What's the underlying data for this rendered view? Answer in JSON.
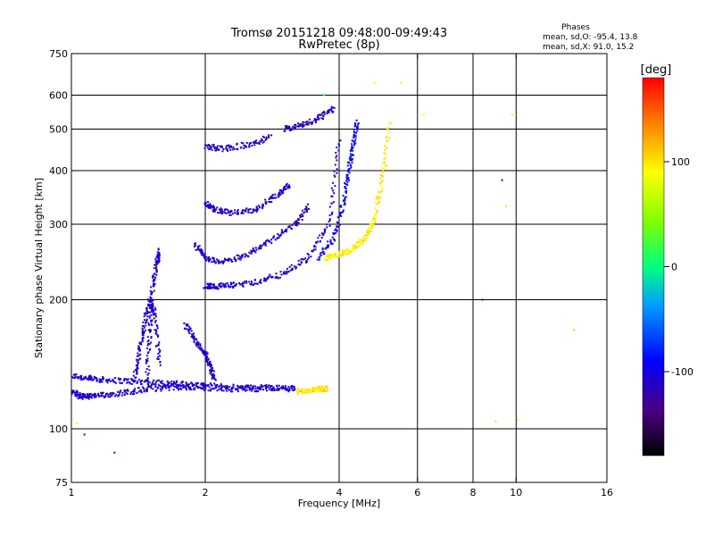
{
  "chart_data": {
    "type": "scatter",
    "title": "Tromsø 20151218 09:48:00-09:49:43",
    "subtitle": "RwPretec (8p)",
    "xlabel": "Frequency [MHz]",
    "ylabel": "Stationary phase Virtual Height [km]",
    "x_scale": "log",
    "y_scale": "log",
    "xlim": [
      1,
      16
    ],
    "ylim": [
      75,
      750
    ],
    "x_ticks": [
      1,
      2,
      4,
      6,
      8,
      10,
      16
    ],
    "y_ticks": [
      75,
      100,
      200,
      300,
      400,
      500,
      600,
      750
    ],
    "x_grid": [
      2,
      4,
      6,
      8,
      10
    ],
    "y_grid": [
      100,
      200,
      300,
      400,
      500,
      600
    ],
    "grid": true,
    "colorbar": {
      "label": "[deg]",
      "range": [
        -180,
        180
      ],
      "ticks": [
        100,
        0,
        -100
      ]
    },
    "stats": {
      "title": "Phases",
      "o_line": "mean, sd,O: -95.4, 13.8",
      "x_line": "mean, sd,X: 91.0, 15.2"
    },
    "traces": [
      {
        "type": "band",
        "freq": [
          1.0,
          1.1,
          1.2,
          1.4,
          1.6,
          1.8,
          2.0,
          2.4,
          2.8,
          3.2
        ],
        "height": [
          133,
          131,
          130,
          129,
          128,
          127,
          126,
          125,
          125,
          124
        ],
        "phase": -105
      },
      {
        "type": "band",
        "freq": [
          1.0,
          1.05,
          1.1,
          1.2,
          1.35,
          1.5,
          1.7,
          1.9,
          2.2,
          2.6,
          3.2
        ],
        "height": [
          122,
          119,
          119,
          120,
          122,
          124,
          125,
          125,
          124,
          124,
          124
        ],
        "phase": -110
      },
      {
        "type": "band",
        "freq": [
          1.38,
          1.42,
          1.46,
          1.5,
          1.54,
          1.58
        ],
        "height": [
          128,
          150,
          175,
          200,
          185,
          140
        ],
        "phase": -110
      },
      {
        "type": "band",
        "freq": [
          1.48,
          1.5,
          1.52,
          1.55,
          1.58
        ],
        "height": [
          130,
          170,
          210,
          240,
          260
        ],
        "phase": -108
      },
      {
        "type": "band",
        "freq": [
          1.8,
          1.9,
          2.0,
          2.05,
          2.1
        ],
        "height": [
          175,
          160,
          150,
          140,
          130
        ],
        "phase": -108
      },
      {
        "type": "band",
        "freq": [
          2.0,
          2.1,
          2.3,
          2.6,
          3.0,
          3.4,
          3.8,
          4.0
        ],
        "height": [
          215,
          215,
          216,
          220,
          230,
          250,
          300,
          480
        ],
        "phase": -110
      },
      {
        "type": "band",
        "freq": [
          3.6,
          3.9,
          4.1,
          4.2,
          4.3,
          4.4
        ],
        "height": [
          250,
          280,
          340,
          400,
          460,
          520
        ],
        "phase": -95
      },
      {
        "type": "band",
        "freq": [
          3.7,
          4.0,
          4.3,
          4.6,
          4.8,
          5.0,
          5.2
        ],
        "height": [
          250,
          255,
          262,
          280,
          310,
          380,
          520
        ],
        "phase": 95
      },
      {
        "type": "band",
        "freq": [
          1.9,
          2.0,
          2.2,
          2.5,
          2.8,
          3.2,
          3.4
        ],
        "height": [
          270,
          250,
          245,
          255,
          275,
          300,
          330
        ],
        "phase": -112
      },
      {
        "type": "band",
        "freq": [
          2.0,
          2.1,
          2.3,
          2.6,
          2.9,
          3.1
        ],
        "height": [
          335,
          325,
          318,
          325,
          350,
          370
        ],
        "phase": -112
      },
      {
        "type": "band",
        "freq": [
          2.0,
          2.2,
          2.5,
          2.8
        ],
        "height": [
          455,
          450,
          460,
          480
        ],
        "phase": -113
      },
      {
        "type": "band",
        "freq": [
          3.0,
          3.3,
          3.6,
          3.9
        ],
        "height": [
          500,
          510,
          530,
          560
        ],
        "phase": -112
      },
      {
        "type": "band",
        "freq": [
          3.2,
          3.4,
          3.6,
          3.75
        ],
        "height": [
          122,
          123,
          124,
          124
        ],
        "phase": 100
      },
      {
        "type": "points",
        "freq": [
          1.07,
          1.03,
          1.25,
          3.7,
          6.2,
          8.4,
          9.0,
          9.5,
          9.8,
          10.1,
          13.5,
          9.3,
          4.8,
          5.5
        ],
        "height": [
          97,
          103,
          88,
          600,
          540,
          200,
          104,
          330,
          540,
          105,
          170,
          380,
          640,
          640
        ],
        "phase": [
          -110,
          80,
          -110,
          0,
          95,
          -120,
          100,
          100,
          100,
          95,
          40,
          -110,
          95,
          95
        ]
      }
    ]
  }
}
